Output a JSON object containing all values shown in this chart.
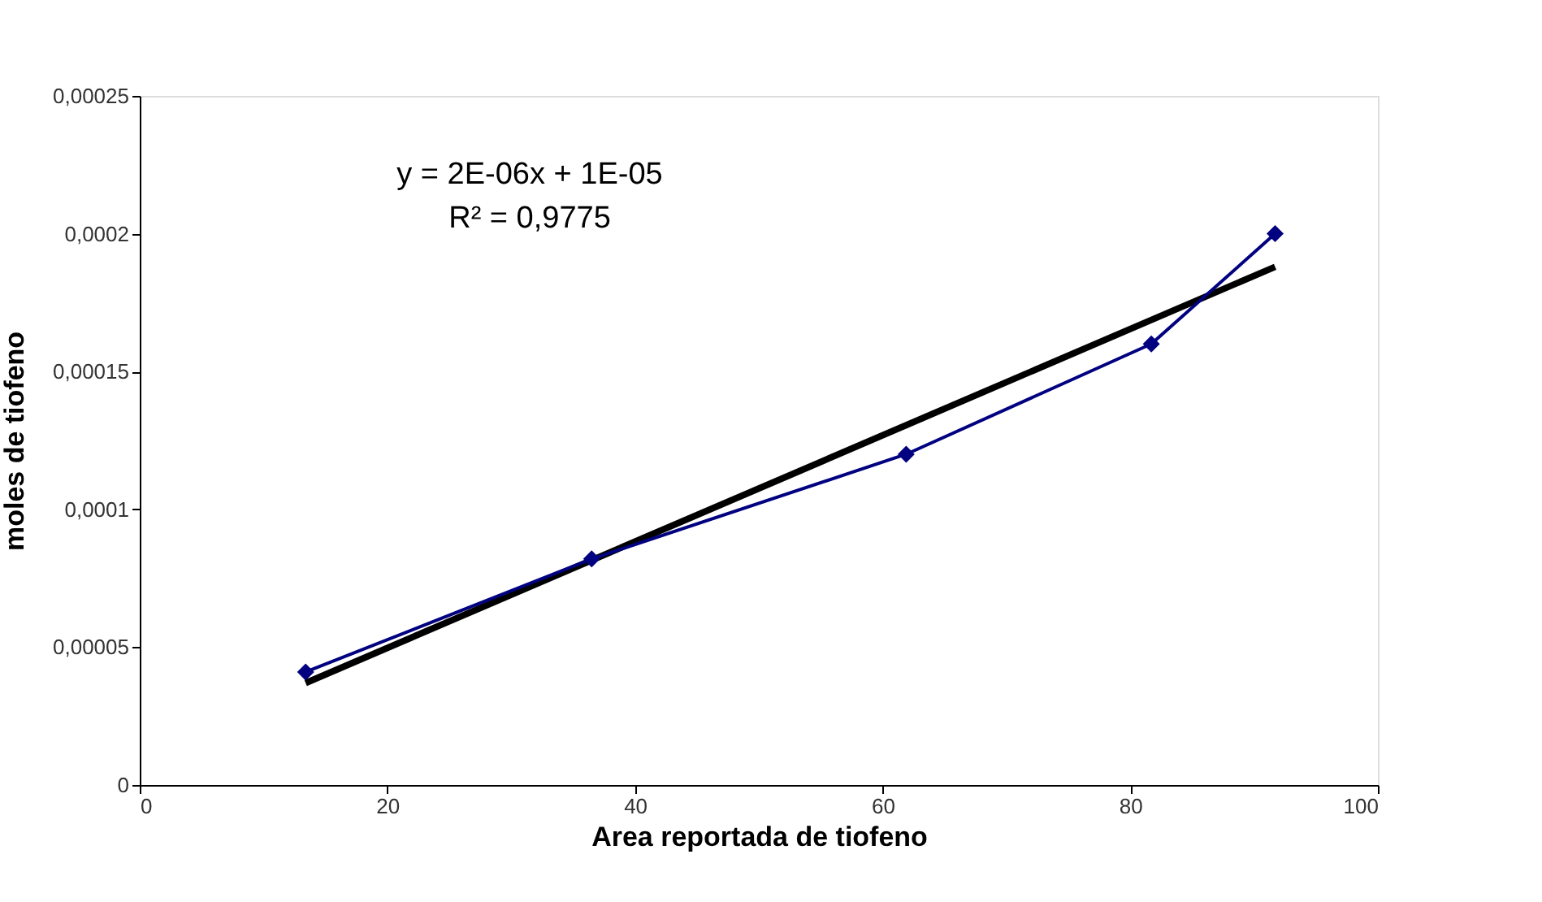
{
  "chart_data": {
    "type": "line",
    "xlabel": "Area reportada de tiofeno",
    "ylabel": "moles de tiofeno",
    "x": [
      13.4,
      36.5,
      61.9,
      81.7,
      91.7
    ],
    "series": [
      {
        "color": "#000080",
        "marker": "diamond",
        "values": [
          4.1e-05,
          8.2e-05,
          0.00012,
          0.00016,
          0.0002
        ]
      },
      {
        "color": "#000000",
        "marker": "none",
        "x": [
          13.4,
          91.7
        ],
        "values": [
          3.7e-05,
          0.000188
        ]
      }
    ],
    "annotations": [
      "y = 2E-06x + 1E-05",
      "R² = 0,9775"
    ],
    "xlim": [
      0,
      100
    ],
    "xticks": [
      0,
      20,
      40,
      60,
      80,
      100
    ],
    "ylim": [
      0,
      0.00025
    ],
    "yticks": [
      0,
      {
        "value": 5e-05,
        "label": "0,00005"
      },
      {
        "value": 0.0001,
        "label": "0,0001"
      },
      {
        "value": 0.00015,
        "label": "0,00015"
      },
      {
        "value": 0.0002,
        "label": "0,0002"
      },
      {
        "value": 0.00025,
        "label": "0,00025"
      }
    ]
  }
}
